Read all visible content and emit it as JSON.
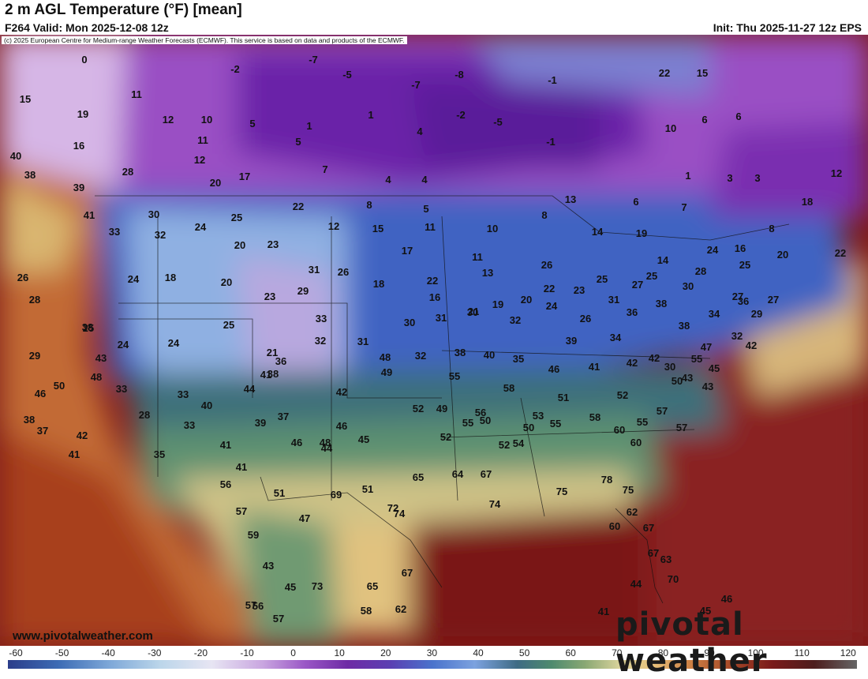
{
  "header": {
    "title": "2 m AGL Temperature (°F) [mean]",
    "valid": "F264 Valid: Mon 2025-12-08 12z",
    "init": "Init: Thu 2025-11-27 12z EPS",
    "copyright": "(c) 2025 European Centre for Medium-range Weather Forecasts (ECMWF). This service is based on data and products of the ECMWF."
  },
  "footer": {
    "site": "www.pivotalweather.com",
    "logo": "pivotal weather"
  },
  "colorbar": {
    "ticks": [
      "-60",
      "-50",
      "-40",
      "-30",
      "-20",
      "-10",
      "0",
      "10",
      "20",
      "30",
      "40",
      "50",
      "60",
      "70",
      "80",
      "90",
      "100",
      "110",
      "120"
    ]
  },
  "values": [
    "0",
    "15",
    "19",
    "16",
    "40",
    "38",
    "39",
    "11",
    "12",
    "10",
    "11",
    "12",
    "28",
    "20",
    "17",
    "5",
    "1",
    "5",
    "7",
    "-2",
    "-7",
    "-5",
    "-7",
    "-8",
    "1",
    "4",
    "-2",
    "-5",
    "-1",
    "-1",
    "22",
    "15",
    "10",
    "6",
    "6",
    "3",
    "1",
    "3",
    "8",
    "12",
    "18",
    "6",
    "7",
    "13",
    "8",
    "8",
    "5",
    "4",
    "4",
    "41",
    "33",
    "30",
    "32",
    "24",
    "25",
    "20",
    "23",
    "22",
    "12",
    "15",
    "11",
    "10",
    "17",
    "11",
    "13",
    "14",
    "19",
    "14",
    "25",
    "24",
    "16",
    "20",
    "22",
    "25",
    "26",
    "26",
    "24",
    "18",
    "20",
    "23",
    "29",
    "31",
    "26",
    "18",
    "22",
    "16",
    "21",
    "19",
    "20",
    "22",
    "23",
    "25",
    "31",
    "27",
    "30",
    "28",
    "27",
    "27",
    "29",
    "28",
    "25",
    "24",
    "24",
    "25",
    "21",
    "32",
    "33",
    "31",
    "30",
    "31",
    "30",
    "32",
    "24",
    "26",
    "36",
    "38",
    "38",
    "34",
    "32",
    "42",
    "36",
    "32",
    "38",
    "40",
    "35",
    "46",
    "39",
    "41",
    "34",
    "42",
    "30",
    "43",
    "45",
    "43",
    "42",
    "47",
    "50",
    "55",
    "52",
    "51",
    "38",
    "29",
    "43",
    "48",
    "50",
    "46",
    "38",
    "37",
    "42",
    "41",
    "33",
    "28",
    "33",
    "33",
    "35",
    "40",
    "41",
    "39",
    "37",
    "36",
    "44",
    "41",
    "42",
    "46",
    "45",
    "44",
    "41",
    "38",
    "48",
    "49",
    "46",
    "48",
    "52",
    "49",
    "52",
    "52",
    "50",
    "55",
    "50",
    "54",
    "56",
    "58",
    "53",
    "55",
    "55",
    "58",
    "60",
    "60",
    "57",
    "57",
    "55",
    "56",
    "57",
    "59",
    "65",
    "64",
    "67",
    "74",
    "75",
    "78",
    "75",
    "62",
    "60",
    "67",
    "67",
    "63",
    "70",
    "45",
    "46",
    "44",
    "41",
    "43",
    "45",
    "57",
    "57",
    "56",
    "47",
    "51",
    "51",
    "74",
    "73",
    "72",
    "69",
    "67",
    "62",
    "65",
    "58"
  ],
  "colors": {
    "cold": "#7b2fb0",
    "water": "#7a1a1a",
    "text": "#111111"
  }
}
